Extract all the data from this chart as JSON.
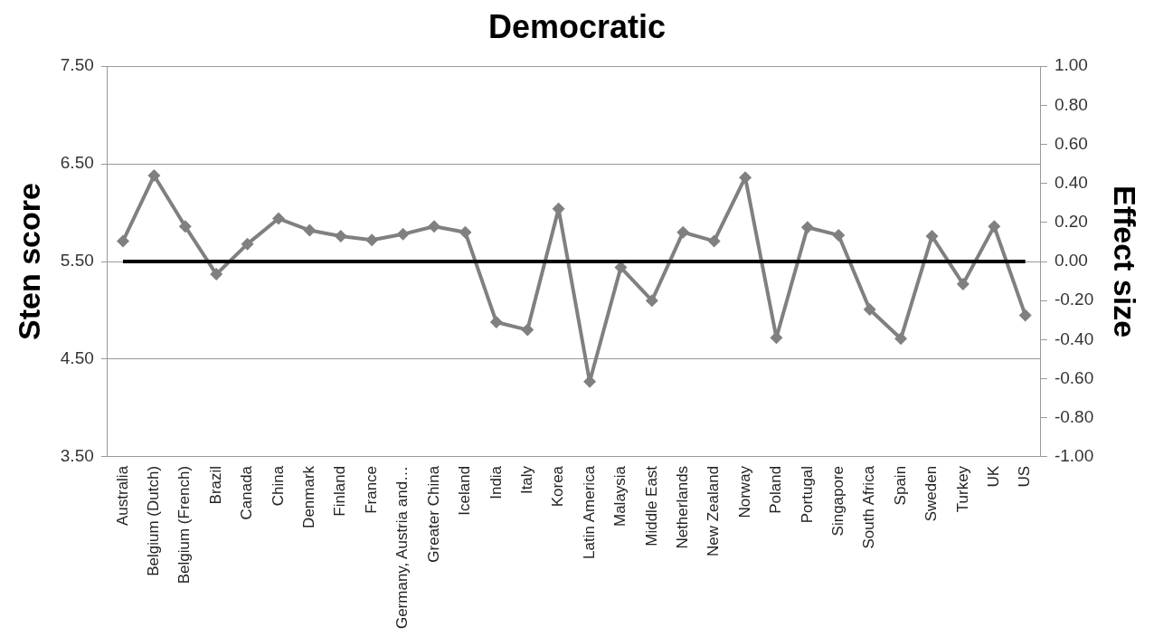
{
  "chart_data": {
    "type": "line",
    "title": "Democratic",
    "ylabel": "Sten score",
    "y2label": "Effect size",
    "categories": [
      "Australia",
      "Belgium (Dutch)",
      "Belgium (French)",
      "Brazil",
      "Canada",
      "China",
      "Denmark",
      "Finland",
      "France",
      "Germany, Austria and…",
      "Greater China",
      "Iceland",
      "India",
      "Italy",
      "Korea",
      "Latin America",
      "Malaysia",
      "Middle East",
      "Netherlands",
      "New Zealand",
      "Norway",
      "Poland",
      "Portugal",
      "Singapore",
      "South Africa",
      "Spain",
      "Sweden",
      "Turkey",
      "UK",
      "US"
    ],
    "series": [
      {
        "color": "#808080",
        "values": [
          5.71,
          6.38,
          5.86,
          5.37,
          5.68,
          5.94,
          5.82,
          5.76,
          5.72,
          5.78,
          5.86,
          5.8,
          4.88,
          4.8,
          6.04,
          4.27,
          5.44,
          5.1,
          5.8,
          5.71,
          6.36,
          4.72,
          5.85,
          5.77,
          5.01,
          4.71,
          5.76,
          5.27,
          5.86,
          4.95
        ]
      }
    ],
    "ylim": [
      3.5,
      7.5
    ],
    "yticks": [
      {
        "value": 3.5,
        "label": "3.50"
      },
      {
        "value": 4.5,
        "label": "4.50"
      },
      {
        "value": 5.5,
        "label": "5.50"
      },
      {
        "value": 6.5,
        "label": "6.50"
      },
      {
        "value": 7.5,
        "label": "7.50"
      }
    ],
    "y2lim": [
      -1,
      1
    ],
    "y2ticks": [
      {
        "value": -1,
        "label": "-1.00"
      },
      {
        "value": -0.8,
        "label": "-0.80"
      },
      {
        "value": -0.6,
        "label": "-0.60"
      },
      {
        "value": -0.4,
        "label": "-0.40"
      },
      {
        "value": -0.2,
        "label": "-0.20"
      },
      {
        "value": 0,
        "label": "0.00"
      },
      {
        "value": 0.2,
        "label": "0.20"
      },
      {
        "value": 0.4,
        "label": "0.40"
      },
      {
        "value": 0.6,
        "label": "0.60"
      },
      {
        "value": 0.8,
        "label": "0.80"
      },
      {
        "value": 1,
        "label": "1.00"
      }
    ],
    "ref_lines": [
      {
        "axis": "y",
        "value": 5.5,
        "color": "#000000",
        "line_style": "solid"
      }
    ],
    "grid": "y",
    "legend": false,
    "marker": "diamond",
    "line_style": "solid"
  }
}
